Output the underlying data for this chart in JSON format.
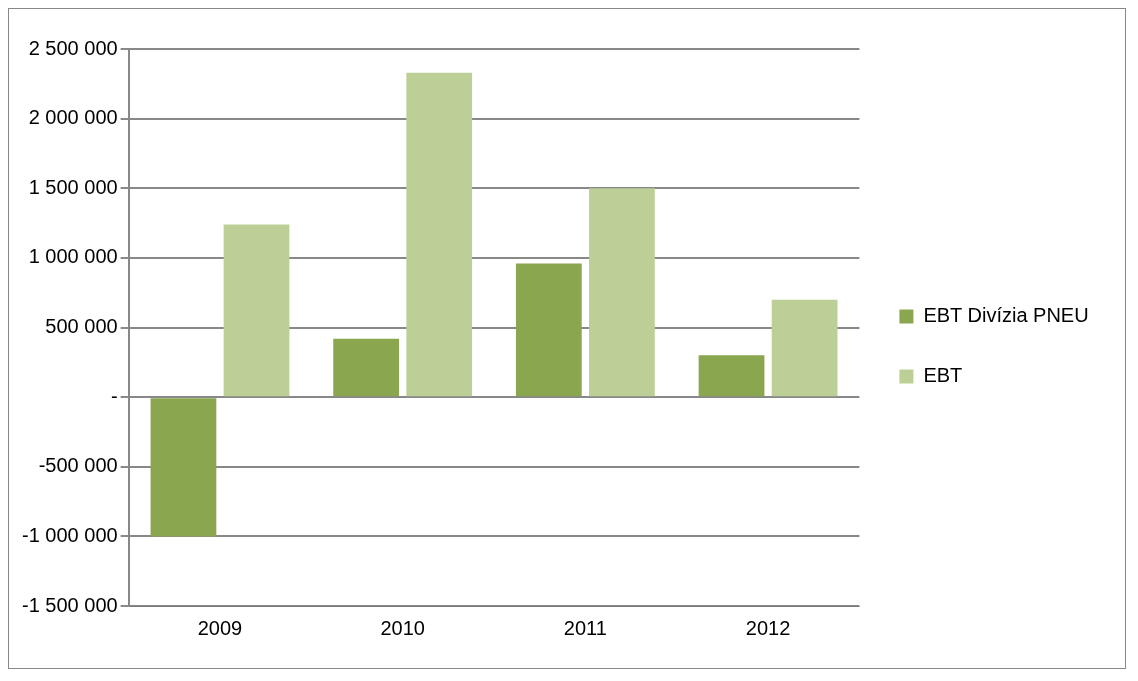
{
  "chart_data": {
    "type": "bar",
    "categories": [
      "2009",
      "2010",
      "2011",
      "2012"
    ],
    "series": [
      {
        "name": "EBT Divízia PNEU",
        "color": "#8aa64e",
        "values": [
          -1000000,
          420000,
          960000,
          300000
        ]
      },
      {
        "name": "EBT",
        "color": "#bccf96",
        "values": [
          1240000,
          2330000,
          1500000,
          700000
        ]
      }
    ],
    "ylim": [
      -1500000,
      2500000
    ],
    "yticks": [
      {
        "value": -1500000,
        "label": "-1 500 000"
      },
      {
        "value": -1000000,
        "label": "-1 000 000"
      },
      {
        "value": -500000,
        "label": "-500 000"
      },
      {
        "value": 0,
        "label": "-"
      },
      {
        "value": 500000,
        "label": "500 000"
      },
      {
        "value": 1000000,
        "label": "1 000 000"
      },
      {
        "value": 1500000,
        "label": "1 500 000"
      },
      {
        "value": 2000000,
        "label": "2 000 000"
      },
      {
        "value": 2500000,
        "label": "2 500 000"
      }
    ],
    "grid": "y",
    "legend": "right"
  }
}
